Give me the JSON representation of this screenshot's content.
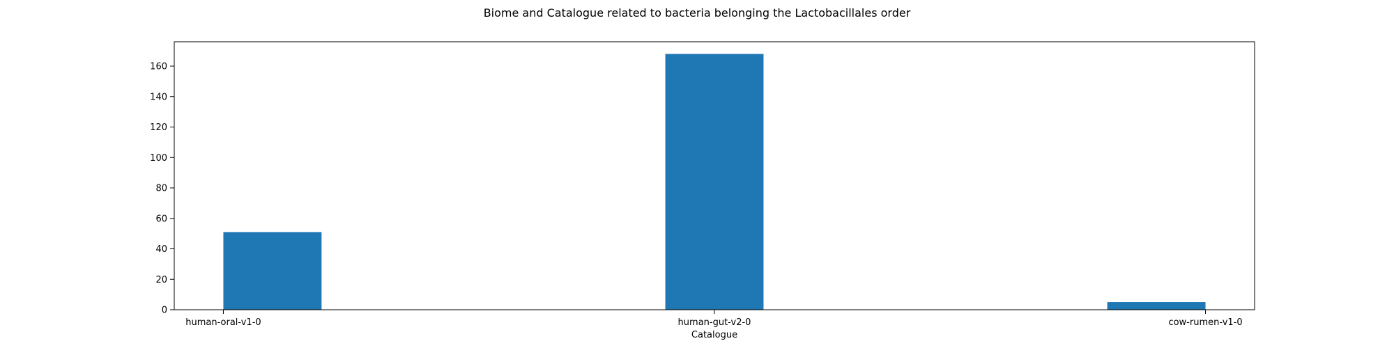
{
  "chart_data": {
    "type": "bar",
    "title": "Biome and Catalogue related to bacteria belonging the Lactobacillales order",
    "xlabel": "Catalogue",
    "ylabel": "",
    "categories": [
      "human-oral-v1-0",
      "human-gut-v2-0",
      "cow-rumen-v1-0"
    ],
    "values": [
      51,
      168,
      5
    ],
    "ylim": [
      0,
      176
    ],
    "yticks": [
      0,
      20,
      40,
      60,
      80,
      100,
      120,
      140,
      160
    ],
    "grid": false,
    "legend": "none",
    "bar_color": "#1f77b4"
  }
}
